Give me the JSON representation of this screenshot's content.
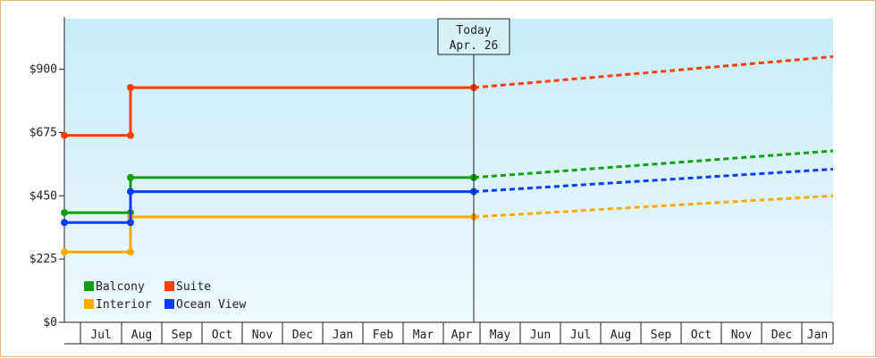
{
  "chart_data": {
    "type": "line",
    "title": "",
    "xlabel": "",
    "ylabel": "",
    "y_ticks": [
      "$0",
      "$225",
      "$450",
      "$675",
      "$900"
    ],
    "ylim": [
      0,
      1080
    ],
    "x_months": [
      "Jul",
      "Aug",
      "Sep",
      "Oct",
      "Nov",
      "Dec",
      "Jan",
      "Feb",
      "Mar",
      "Apr",
      "May",
      "Jun",
      "Jul",
      "Aug",
      "Sep",
      "Oct",
      "Nov",
      "Dec",
      "Jan"
    ],
    "today_marker": {
      "line1": "Today",
      "line2": "Apr. 26"
    },
    "grid": false,
    "legend_position": "bottom-left",
    "series": [
      {
        "name": "Balcony",
        "color": "#11a011",
        "actual": [
          [
            "Jun 15",
            390
          ],
          [
            "Aug 1",
            390
          ],
          [
            "Aug 1",
            515
          ],
          [
            "Apr 26",
            515
          ]
        ],
        "projected_end": [
          "Jan end",
          610
        ]
      },
      {
        "name": "Suite",
        "color": "#ff3d00",
        "actual": [
          [
            "Jun 15",
            665
          ],
          [
            "Aug 1",
            665
          ],
          [
            "Aug 1",
            835
          ],
          [
            "Apr 26",
            835
          ]
        ],
        "projected_end": [
          "Jan end",
          945
        ]
      },
      {
        "name": "Interior",
        "color": "#ffa800",
        "actual": [
          [
            "Jun 15",
            250
          ],
          [
            "Aug 1",
            250
          ],
          [
            "Aug 1",
            375
          ],
          [
            "Apr 26",
            375
          ]
        ],
        "projected_end": [
          "Jan end",
          450
        ]
      },
      {
        "name": "Ocean View",
        "color": "#0a3cff",
        "actual": [
          [
            "Jun 15",
            355
          ],
          [
            "Aug 1",
            355
          ],
          [
            "Aug 1",
            465
          ],
          [
            "Apr 26",
            465
          ]
        ],
        "projected_end": [
          "Jan end",
          545
        ]
      }
    ]
  }
}
